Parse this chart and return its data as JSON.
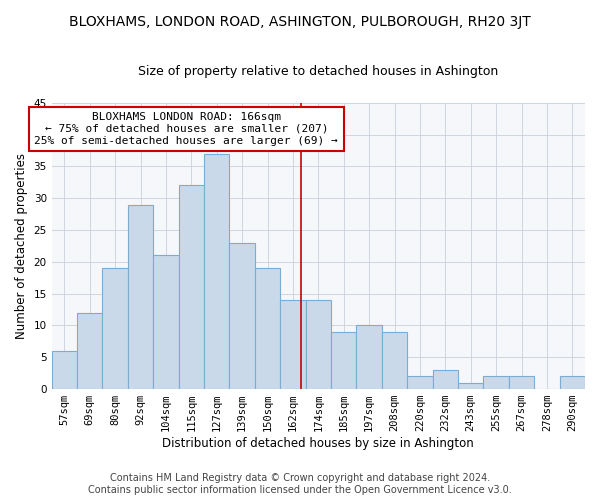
{
  "title": "BLOXHAMS, LONDON ROAD, ASHINGTON, PULBOROUGH, RH20 3JT",
  "subtitle": "Size of property relative to detached houses in Ashington",
  "xlabel": "Distribution of detached houses by size in Ashington",
  "ylabel": "Number of detached properties",
  "bar_labels": [
    "57sqm",
    "69sqm",
    "80sqm",
    "92sqm",
    "104sqm",
    "115sqm",
    "127sqm",
    "139sqm",
    "150sqm",
    "162sqm",
    "174sqm",
    "185sqm",
    "197sqm",
    "208sqm",
    "220sqm",
    "232sqm",
    "243sqm",
    "255sqm",
    "267sqm",
    "278sqm",
    "290sqm"
  ],
  "bar_values": [
    6,
    12,
    19,
    29,
    21,
    32,
    37,
    23,
    19,
    14,
    14,
    9,
    10,
    9,
    2,
    3,
    1,
    2,
    2,
    0,
    2
  ],
  "bar_color": "#c9d9ea",
  "bar_edge_color": "#7aadd4",
  "vline_color": "#cc0000",
  "annotation_title": "BLOXHAMS LONDON ROAD: 166sqm",
  "annotation_line1": "← 75% of detached houses are smaller (207)",
  "annotation_line2": "25% of semi-detached houses are larger (69) →",
  "annotation_box_color": "#ffffff",
  "annotation_box_edge_color": "#cc0000",
  "ylim": [
    0,
    45
  ],
  "yticks": [
    0,
    5,
    10,
    15,
    20,
    25,
    30,
    35,
    40,
    45
  ],
  "footer_line1": "Contains HM Land Registry data © Crown copyright and database right 2024.",
  "footer_line2": "Contains public sector information licensed under the Open Government Licence v3.0.",
  "bg_color": "#ffffff",
  "plot_bg_color": "#f5f7fa",
  "grid_color": "#c8d0dc",
  "title_fontsize": 10,
  "subtitle_fontsize": 9,
  "xlabel_fontsize": 8.5,
  "ylabel_fontsize": 8.5,
  "tick_fontsize": 7.5,
  "footer_fontsize": 7,
  "annotation_fontsize": 8
}
